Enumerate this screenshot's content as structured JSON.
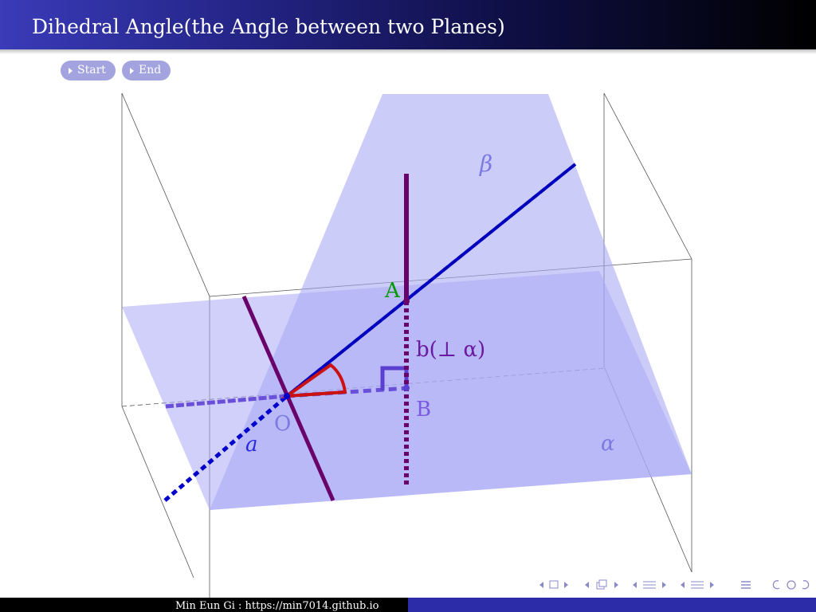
{
  "header": {
    "title": "Dihedral Angle(the Angle between two Planes)"
  },
  "controls": {
    "start_label": "Start",
    "end_label": "End"
  },
  "diagram": {
    "labels": {
      "beta": "β",
      "alpha": "α",
      "point_a": "A",
      "point_b": "B",
      "point_o": "O",
      "line_a": "a",
      "line_b": "b(⊥ α)"
    },
    "colors": {
      "plane": "#aaaaf5",
      "blue_line": "#0000cc",
      "purple_line": "#6a006a",
      "red_angle": "#cc1111",
      "projection": "#6a4fd8",
      "green": "#009900"
    }
  },
  "footer": {
    "author": "Min Eun Gi : https://min7014.github.io"
  },
  "navigation": {
    "icons": [
      "nav-frame-icon",
      "nav-subsection-icon",
      "nav-section-icon",
      "nav-slide-icon",
      "nav-toc-icon",
      "nav-search-icon"
    ]
  }
}
